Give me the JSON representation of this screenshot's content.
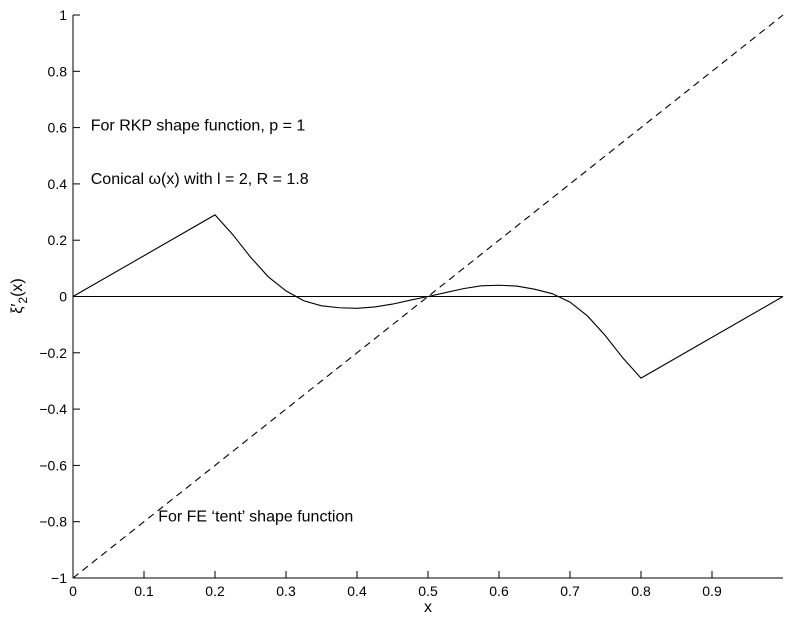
{
  "chart_data": {
    "type": "line",
    "xlabel": "x",
    "ylabel_parts": {
      "base": "ξ",
      "prime": "′",
      "sub": "2",
      "arg": "(x)"
    },
    "xlim": [
      0,
      1
    ],
    "ylim": [
      -1,
      1
    ],
    "x_ticks": [
      0,
      0.1,
      0.2,
      0.3,
      0.4,
      0.5,
      0.6,
      0.7,
      0.8,
      0.9
    ],
    "x_tick_labels": [
      "0",
      "0.1",
      "0.2",
      "0.3",
      "0.4",
      "0.5",
      "0.6",
      "0.7",
      "0.8",
      "0.9"
    ],
    "y_ticks": [
      -1,
      -0.8,
      -0.6,
      -0.4,
      -0.2,
      0,
      0.2,
      0.4,
      0.6,
      0.8,
      1
    ],
    "y_tick_labels": [
      "−1",
      "−0.8",
      "−0.6",
      "−0.4",
      "−0.2",
      "0",
      "0.2",
      "0.4",
      "0.6",
      "0.8",
      "1"
    ],
    "grid": false,
    "series": [
      {
        "style": "solid",
        "color": "#000000",
        "x": [
          0,
          0.2,
          0.225,
          0.25,
          0.275,
          0.3,
          0.325,
          0.35,
          0.375,
          0.4,
          0.425,
          0.45,
          0.475,
          0.5,
          0.525,
          0.55,
          0.575,
          0.6,
          0.625,
          0.65,
          0.675,
          0.7,
          0.725,
          0.75,
          0.775,
          0.8,
          1.0
        ],
        "y": [
          0,
          0.29,
          0.22,
          0.14,
          0.07,
          0.02,
          -0.015,
          -0.033,
          -0.04,
          -0.042,
          -0.037,
          -0.027,
          -0.013,
          0,
          0.014,
          0.028,
          0.038,
          0.04,
          0.037,
          0.026,
          0.01,
          -0.02,
          -0.07,
          -0.14,
          -0.22,
          -0.29,
          0
        ]
      },
      {
        "style": "dashed",
        "color": "#000000",
        "x": [
          0,
          1
        ],
        "y": [
          -1,
          1
        ]
      },
      {
        "style": "solid",
        "color": "#000000",
        "x": [
          0,
          1
        ],
        "y": [
          0,
          0
        ]
      }
    ],
    "annotations": [
      {
        "text": "For RKP shape function, p = 1",
        "x": 0.025,
        "y": 0.59
      },
      {
        "text": "Conical ω(x) with l = 2, R = 1.8",
        "x": 0.025,
        "y": 0.4
      },
      {
        "text": "For FE ‘tent’ shape function",
        "x": 0.12,
        "y": -0.8
      }
    ]
  }
}
